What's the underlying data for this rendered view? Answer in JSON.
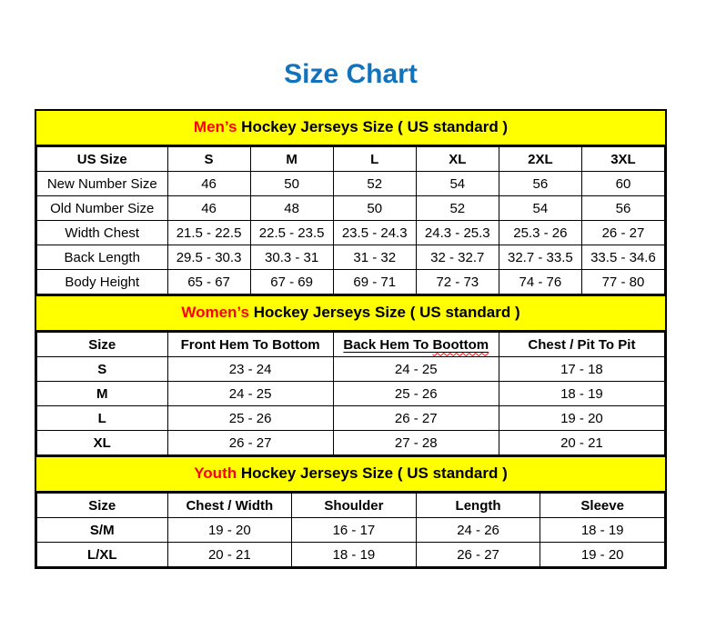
{
  "title": "Size Chart",
  "colors": {
    "title_blue": "#1273BC",
    "band_yellow": "#FFFF00",
    "highlight_red": "#FF0000",
    "border_black": "#000000"
  },
  "chart_data": [
    {
      "type": "table",
      "id": "mens",
      "heading_highlight": "Men’s",
      "heading_rest": " Hockey Jerseys Size ( US standard )",
      "columns": [
        "US Size",
        "S",
        "M",
        "L",
        "XL",
        "2XL",
        "3XL"
      ],
      "row_label_bold": false,
      "rows": [
        {
          "label": "New Number Size",
          "values": [
            "46",
            "50",
            "52",
            "54",
            "56",
            "60"
          ]
        },
        {
          "label": "Old Number Size",
          "values": [
            "46",
            "48",
            "50",
            "52",
            "54",
            "56"
          ]
        },
        {
          "label": "Width Chest",
          "values": [
            "21.5 - 22.5",
            "22.5 - 23.5",
            "23.5 - 24.3",
            "24.3 - 25.3",
            "25.3 - 26",
            "26 - 27"
          ]
        },
        {
          "label": "Back Length",
          "values": [
            "29.5 - 30.3",
            "30.3 - 31",
            "31 - 32",
            "32 - 32.7",
            "32.7 - 33.5",
            "33.5 - 34.6"
          ]
        },
        {
          "label": "Body Height",
          "values": [
            "65 - 67",
            "67 - 69",
            "69 - 71",
            "72 - 73",
            "74 - 76",
            "77 - 80"
          ]
        }
      ]
    },
    {
      "type": "table",
      "id": "womens",
      "heading_highlight": "Women’s",
      "heading_rest": " Hockey Jerseys Size ( US standard )",
      "columns": [
        "Size",
        "Front Hem To Bottom",
        "Back Hem To Boottom",
        "Chest / Pit To Pit"
      ],
      "spellcheck": {
        "column": 2,
        "wavy_word": "Boottom"
      },
      "row_label_bold": true,
      "rows": [
        {
          "label": "S",
          "values": [
            "23 - 24",
            "24 - 25",
            "17 - 18"
          ]
        },
        {
          "label": "M",
          "values": [
            "24 - 25",
            "25 - 26",
            "18 - 19"
          ]
        },
        {
          "label": "L",
          "values": [
            "25 - 26",
            "26 - 27",
            "19 - 20"
          ]
        },
        {
          "label": "XL",
          "values": [
            "26 - 27",
            "27 - 28",
            "20 - 21"
          ]
        }
      ]
    },
    {
      "type": "table",
      "id": "youth",
      "heading_highlight": "Youth",
      "heading_rest": " Hockey Jerseys Size ( US standard )",
      "columns": [
        "Size",
        "Chest / Width",
        "Shoulder",
        "Length",
        "Sleeve"
      ],
      "row_label_bold": true,
      "rows": [
        {
          "label": "S/M",
          "values": [
            "19 - 20",
            "16 - 17",
            "24 - 26",
            "18 - 19"
          ]
        },
        {
          "label": "L/XL",
          "values": [
            "20 - 21",
            "18 - 19",
            "26 - 27",
            "19 - 20"
          ]
        }
      ]
    }
  ]
}
